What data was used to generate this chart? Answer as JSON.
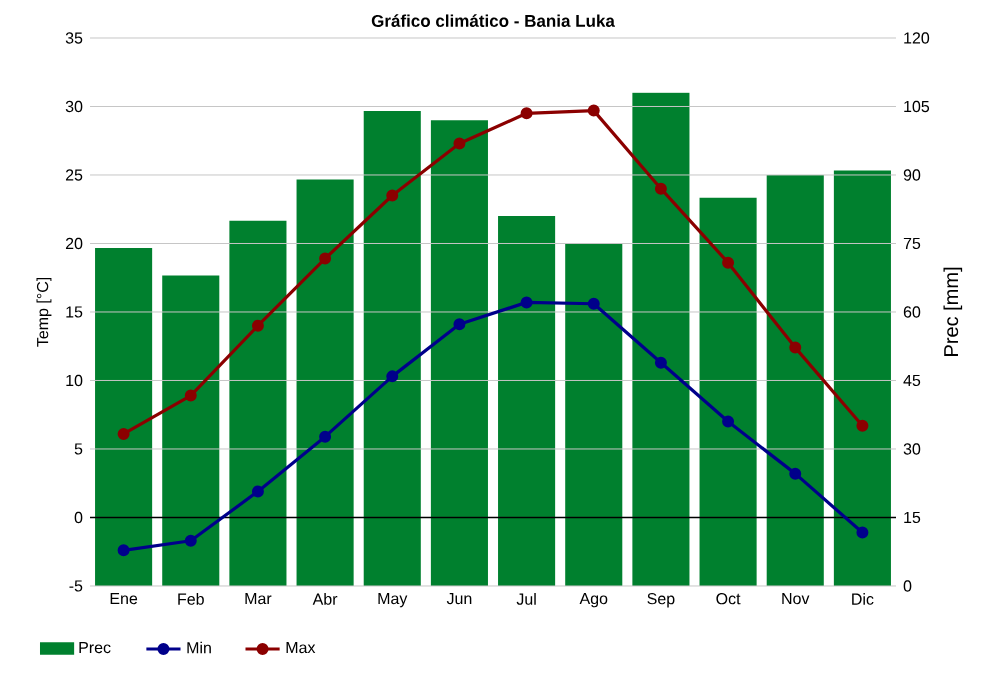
{
  "chart_data": {
    "type": "bar",
    "title": "Gráfico climático - Bania Luka",
    "ylabel": "Temp [°C]",
    "y2label": "Prec [mm]",
    "categories": [
      "Ene",
      "Feb",
      "Mar",
      "Abr",
      "May",
      "Jun",
      "Jul",
      "Ago",
      "Sep",
      "Oct",
      "Nov",
      "Dic"
    ],
    "series": [
      {
        "name": "Prec",
        "axis": "y2",
        "color": "#00802e",
        "values": [
          74,
          68,
          80,
          89,
          104,
          102,
          81,
          75,
          108,
          85,
          90,
          91
        ]
      },
      {
        "name": "Min",
        "type": "line",
        "color": "#00008b",
        "values": [
          -2.4,
          -1.7,
          1.9,
          5.9,
          10.3,
          14.1,
          15.7,
          15.6,
          11.3,
          7.0,
          3.2,
          -1.1
        ]
      },
      {
        "name": "Max",
        "type": "line",
        "color": "#8b0000",
        "values": [
          6.1,
          8.9,
          14.0,
          18.9,
          23.5,
          27.3,
          29.5,
          29.7,
          24.0,
          18.6,
          12.4,
          6.7
        ]
      }
    ],
    "ylim": [
      -5,
      35
    ],
    "yticks": [
      -5,
      0,
      5,
      10,
      15,
      20,
      25,
      30,
      35
    ],
    "y2lim": [
      0,
      120
    ],
    "y2ticks": [
      0,
      15,
      30,
      45,
      60,
      75,
      90,
      105,
      120
    ],
    "ref_lines": [
      {
        "axis": "y",
        "value": 0,
        "color": "#000000"
      }
    ],
    "grid": "y",
    "legend": "bottom",
    "marker": "circle"
  }
}
